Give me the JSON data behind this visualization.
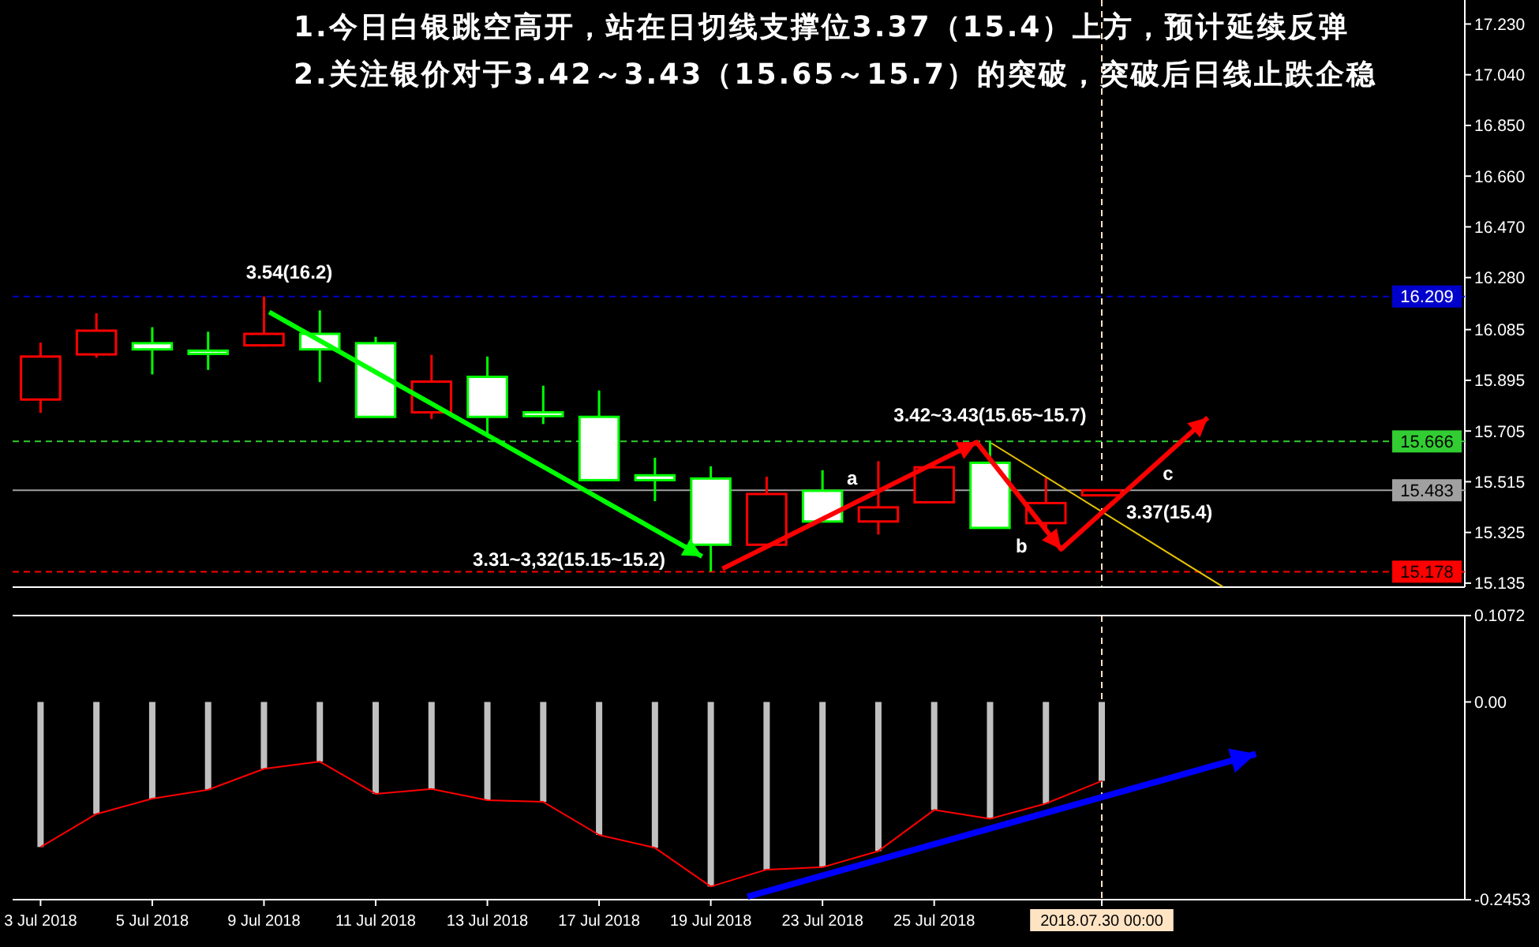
{
  "chart_data": [
    {
      "type": "candlestick",
      "annotations": [
        "1.今日白银跳空高开，站在日切线支撑位3.37（15.4）上方，预计延续反弹",
        "2.关注银价对于3.42～3.43（15.65～15.7）的突破，突破后日线止跌企稳",
        "3.54(16.2)",
        "3.31~3,32(15.15~15.2)",
        "3.42~3.43(15.65~15.7)",
        "a",
        "b",
        "c",
        "3.37(15.4)"
      ],
      "categories": [
        "3 Jul 2018",
        null,
        "5 Jul 2018",
        null,
        "9 Jul 2018",
        null,
        "11 Jul 2018",
        null,
        "13 Jul 2018",
        null,
        "17 Jul 2018",
        null,
        "19 Jul 2018",
        null,
        "23 Jul 2018",
        null,
        "25 Jul 2018",
        null,
        null,
        "2018.07.30 00:00",
        null,
        null,
        null,
        null,
        null,
        null
      ],
      "ohlc": [
        [
          15.823,
          16.036,
          15.773,
          15.984
        ],
        [
          15.992,
          16.146,
          15.98,
          16.081
        ],
        [
          16.034,
          16.094,
          15.917,
          16.011
        ],
        [
          16.006,
          16.077,
          15.934,
          15.994
        ],
        [
          16.026,
          16.209,
          16.021,
          16.069
        ],
        [
          16.069,
          16.157,
          15.888,
          16.011
        ],
        [
          16.034,
          16.058,
          15.758,
          15.758
        ],
        [
          15.775,
          15.99,
          15.75,
          15.89
        ],
        [
          15.908,
          15.984,
          15.688,
          15.758
        ],
        [
          15.775,
          15.875,
          15.731,
          15.761
        ],
        [
          15.758,
          15.857,
          15.521,
          15.521
        ],
        [
          15.539,
          15.605,
          15.442,
          15.521
        ],
        [
          15.527,
          15.573,
          15.178,
          15.279
        ],
        [
          15.279,
          15.534,
          15.279,
          15.469
        ],
        [
          15.481,
          15.558,
          15.366,
          15.366
        ],
        [
          15.366,
          15.592,
          15.317,
          15.419
        ],
        [
          15.438,
          15.59,
          15.438,
          15.569
        ],
        [
          15.586,
          15.666,
          15.342,
          15.342
        ],
        [
          15.36,
          15.529,
          15.323,
          15.435
        ],
        [
          15.464,
          15.483,
          15.464,
          15.483
        ],
        null,
        null,
        null,
        null,
        null,
        null
      ],
      "colors": [
        "#ff0000",
        "#ff0000",
        "#00ff00",
        "#00ff00",
        "#ff0000",
        "#00ff00",
        "#00ff00",
        "#ff0000",
        "#00ff00",
        "#00ff00",
        "#00ff00",
        "#00ff00",
        "#00ff00",
        "#ff0000",
        "#00ff00",
        "#ff0000",
        "#ff0000",
        "#00ff00",
        "#ff0000",
        "#ff0000",
        null,
        null,
        null,
        null,
        null,
        null
      ],
      "ylim": [
        15.12,
        17.32
      ],
      "yticks": [
        {
          "value": 17.23,
          "label": "17.230"
        },
        {
          "value": 17.04,
          "label": "17.040"
        },
        {
          "value": 16.85,
          "label": "16.850"
        },
        {
          "value": 16.66,
          "label": "16.660"
        },
        {
          "value": 16.47,
          "label": "16.470"
        },
        {
          "value": 16.28,
          "label": "16.280"
        },
        16.085,
        15.895,
        15.705,
        15.515,
        15.325,
        15.135
      ],
      "tick_labels": "y",
      "ref_lines": [
        {
          "axis": "y",
          "value": 16.209,
          "label": "16.209",
          "color": "#0000cd",
          "line_style": "dashed"
        },
        {
          "axis": "y",
          "value": 15.666,
          "label": "15.666",
          "color": "#32cd32",
          "line_style": "dashed"
        },
        {
          "axis": "y",
          "value": 15.483,
          "label": "15.483",
          "color": "#a0a0a0",
          "line_style": "solid"
        },
        {
          "axis": "y",
          "value": 15.178,
          "label": "15.178",
          "color": "#ff0000",
          "line_style": "dashed"
        },
        {
          "axis": "x",
          "value": "2018.07.30 00:00",
          "color": "#ffe4c4",
          "line_style": "dashed"
        }
      ]
    },
    {
      "type": "bar",
      "categories": [
        "3 Jul 2018",
        null,
        "5 Jul 2018",
        null,
        "9 Jul 2018",
        null,
        "11 Jul 2018",
        null,
        "13 Jul 2018",
        null,
        "17 Jul 2018",
        null,
        "19 Jul 2018",
        null,
        "23 Jul 2018",
        null,
        "25 Jul 2018",
        null,
        null,
        "2018.07.30 00:00",
        null,
        null,
        null,
        null,
        null,
        null
      ],
      "series": [
        {
          "color": "#c0c0c0",
          "values": [
            -0.18,
            -0.139,
            -0.12,
            -0.109,
            -0.083,
            -0.074,
            -0.114,
            -0.108,
            -0.122,
            -0.124,
            -0.165,
            -0.181,
            -0.229,
            -0.208,
            -0.205,
            -0.185,
            -0.134,
            -0.145,
            -0.126,
            -0.098,
            null,
            null,
            null,
            null,
            null,
            null
          ]
        },
        {
          "type": "line",
          "color": "#ff0000",
          "values": [
            -0.18,
            -0.139,
            -0.12,
            -0.109,
            -0.083,
            -0.074,
            -0.114,
            -0.108,
            -0.122,
            -0.124,
            -0.165,
            -0.181,
            -0.229,
            -0.208,
            -0.205,
            -0.185,
            -0.134,
            -0.145,
            -0.126,
            -0.098,
            null,
            null,
            null,
            null,
            null,
            null
          ]
        }
      ],
      "ylim": [
        -0.2453,
        0.1072
      ],
      "yticks": [
        0.1072,
        {
          "value": 0,
          "label": "0.00"
        },
        -0.2453
      ],
      "ref_lines": [
        {
          "axis": "x",
          "value": "2018.07.30 00:00",
          "color": "#ffe4c4",
          "line_style": "dashed"
        }
      ]
    }
  ]
}
